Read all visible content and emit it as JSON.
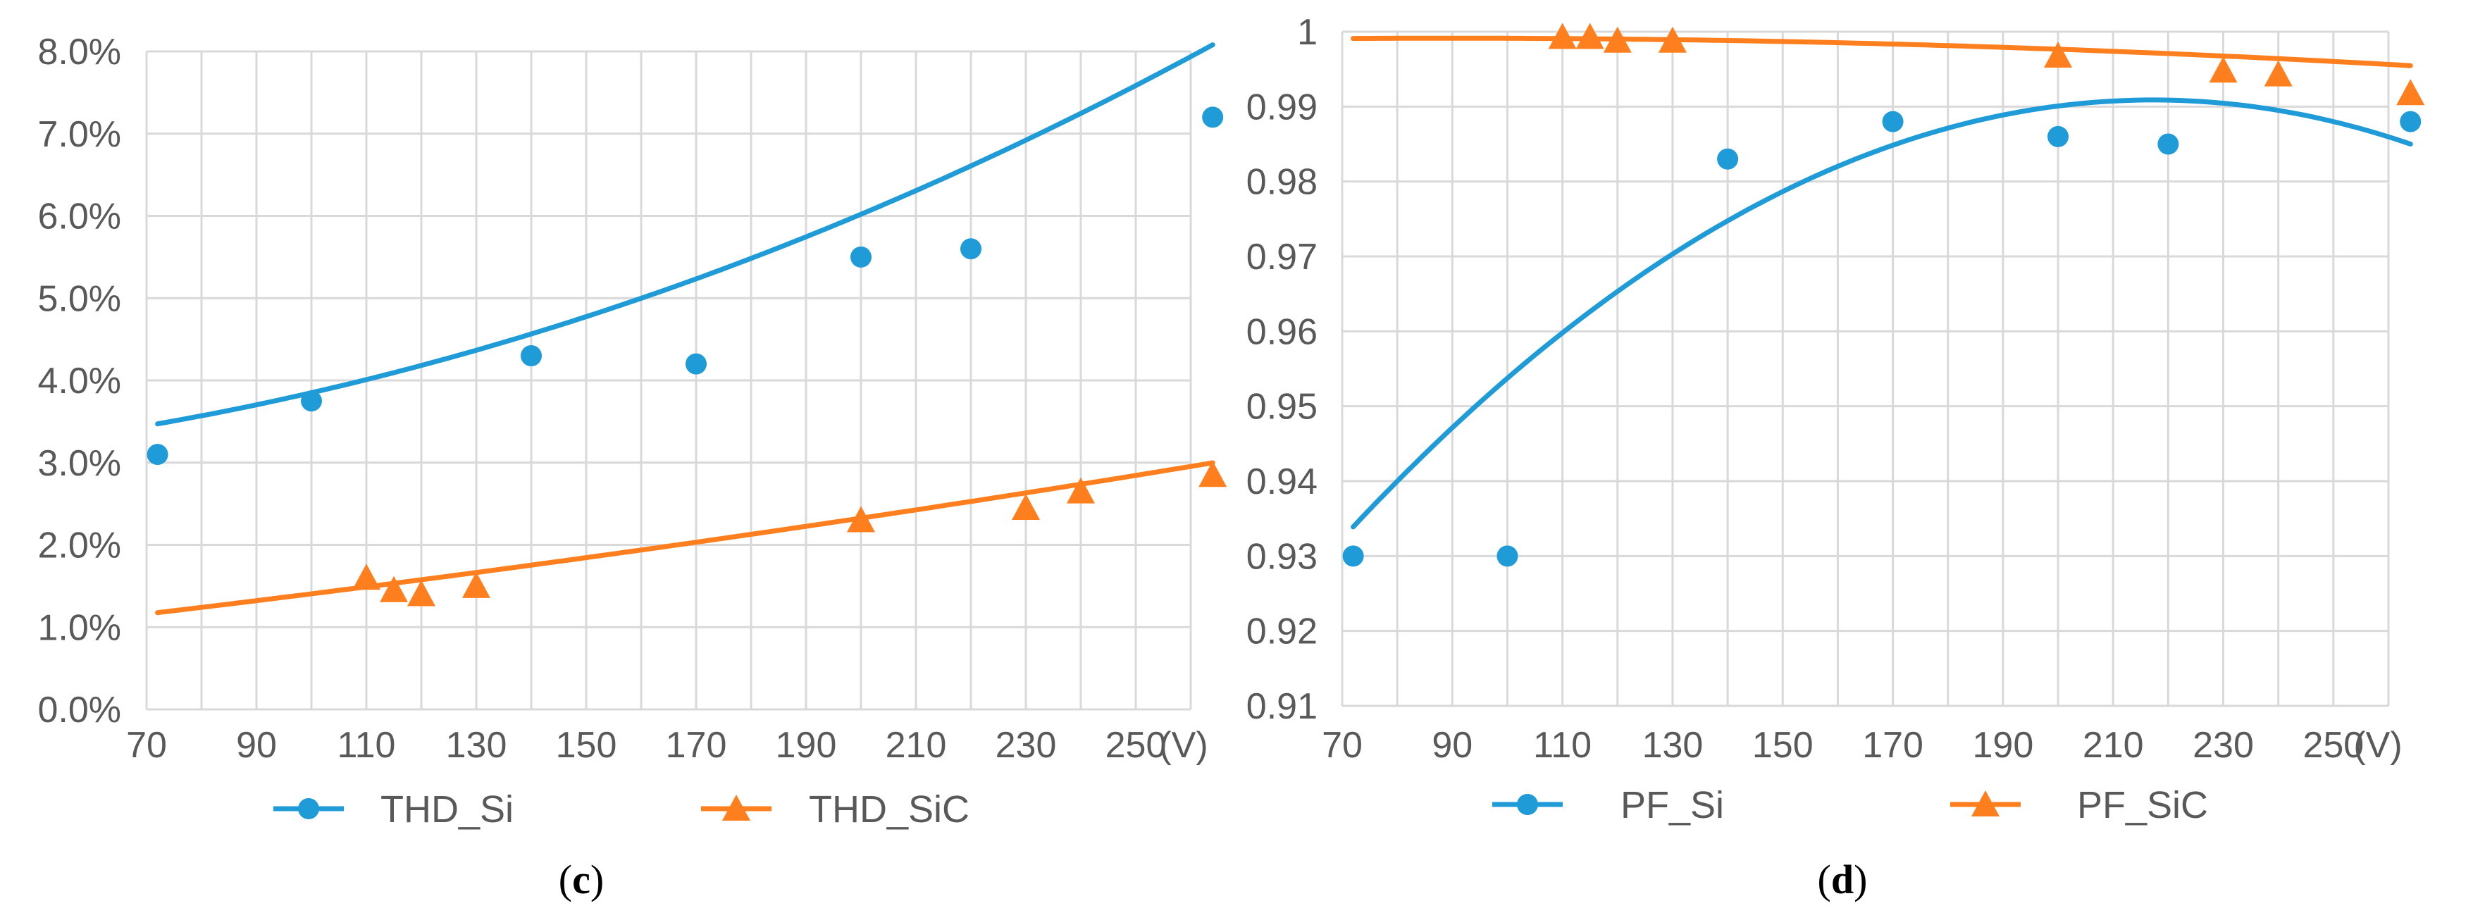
{
  "colors": {
    "si": "#1f9bd7",
    "sic": "#ff7f1e",
    "grid": "#d9d9d9",
    "tick_text": "#595959"
  },
  "chart_data": [
    {
      "type": "scatter",
      "panel_label": "c",
      "title": "",
      "xlabel": "",
      "ylabel": "",
      "x_unit_label": "(V)",
      "xlim": [
        70,
        260
      ],
      "xticks": [
        70,
        90,
        110,
        130,
        150,
        170,
        190,
        210,
        230,
        250
      ],
      "ylim": [
        0.0,
        8.0
      ],
      "yticks": [
        "0.0%",
        "1.0%",
        "2.0%",
        "3.0%",
        "4.0%",
        "5.0%",
        "6.0%",
        "7.0%",
        "8.0%"
      ],
      "ytick_values": [
        0,
        1,
        2,
        3,
        4,
        5,
        6,
        7,
        8
      ],
      "grid": true,
      "legend_position": "bottom",
      "series": [
        {
          "name": "THD_Si",
          "color_key": "si",
          "marker": "circle",
          "x": [
            72,
            100,
            140,
            170,
            200,
            220,
            264
          ],
          "y": [
            3.1,
            3.75,
            4.3,
            4.2,
            5.5,
            5.6,
            7.2
          ],
          "trend": {
            "kind": "poly2",
            "coeffs": [
              2.96,
              0.0025,
              6.4e-05
            ],
            "x_range": [
              72,
              264
            ]
          }
        },
        {
          "name": "THD_SiC",
          "color_key": "sic",
          "marker": "triangle",
          "x": [
            110,
            115,
            120,
            130,
            200,
            230,
            240,
            264
          ],
          "y": [
            1.6,
            1.45,
            1.4,
            1.5,
            2.3,
            2.45,
            2.65,
            2.85
          ],
          "trend": {
            "kind": "poly2",
            "coeffs": [
              0.645,
              0.0068,
              8e-06
            ],
            "x_range": [
              72,
              264
            ]
          }
        }
      ]
    },
    {
      "type": "scatter",
      "panel_label": "d",
      "title": "",
      "xlabel": "",
      "ylabel": "",
      "x_unit_label": "(V)",
      "xlim": [
        70,
        260
      ],
      "xticks": [
        70,
        90,
        110,
        130,
        150,
        170,
        190,
        210,
        230,
        250
      ],
      "ylim": [
        0.91,
        1.0
      ],
      "yticks": [
        "0.91",
        "0.92",
        "0.93",
        "0.94",
        "0.95",
        "0.96",
        "0.97",
        "0.98",
        "0.99",
        "1"
      ],
      "ytick_values": [
        0.91,
        0.92,
        0.93,
        0.94,
        0.95,
        0.96,
        0.97,
        0.98,
        0.99,
        1.0
      ],
      "grid": true,
      "legend_position": "bottom",
      "series": [
        {
          "name": "PF_Si",
          "color_key": "si",
          "marker": "circle",
          "x": [
            72,
            100,
            140,
            170,
            200,
            220,
            264
          ],
          "y": [
            0.93,
            0.93,
            0.983,
            0.988,
            0.986,
            0.985,
            0.988
          ],
          "trend": {
            "kind": "poly2",
            "coeffs": [
              0.8634,
              0.0011734,
              -2.7e-06
            ],
            "x_range": [
              72,
              264
            ]
          }
        },
        {
          "name": "PF_SiC",
          "color_key": "sic",
          "marker": "triangle",
          "x": [
            110,
            115,
            120,
            130,
            200,
            230,
            240,
            264
          ],
          "y": [
            0.9993,
            0.9993,
            0.9988,
            0.9988,
            0.9968,
            0.9948,
            0.9943,
            0.9918
          ],
          "trend": {
            "kind": "poly2",
            "coeffs": [
              0.99818,
              2.14e-05,
              -1.2e-07
            ],
            "x_range": [
              72,
              264
            ]
          }
        }
      ]
    }
  ]
}
